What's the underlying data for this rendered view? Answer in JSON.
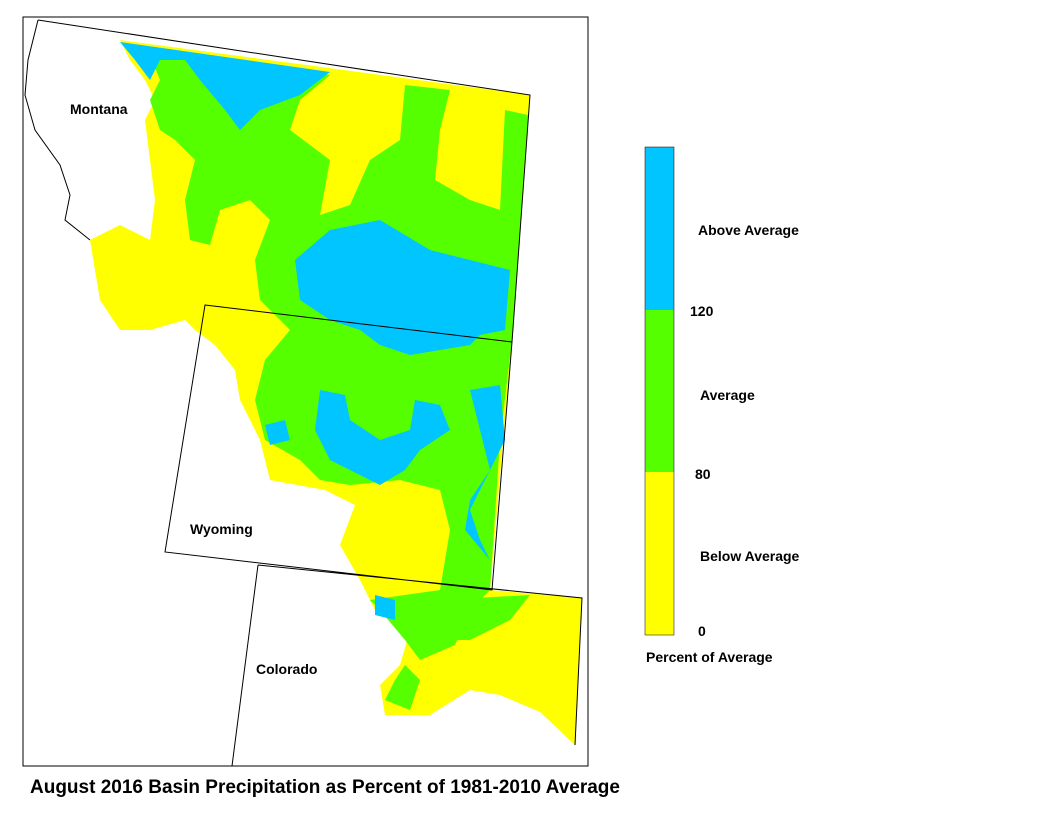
{
  "title": "August 2016 Basin Precipitation as Percent of 1981-2010 Average",
  "states": [
    "Montana",
    "Wyoming",
    "Colorado"
  ],
  "legend": {
    "categories": [
      "Above Average",
      "Average",
      "Below Average"
    ],
    "breaks": [
      120,
      80,
      0
    ],
    "caption": "Percent of Average"
  }
}
